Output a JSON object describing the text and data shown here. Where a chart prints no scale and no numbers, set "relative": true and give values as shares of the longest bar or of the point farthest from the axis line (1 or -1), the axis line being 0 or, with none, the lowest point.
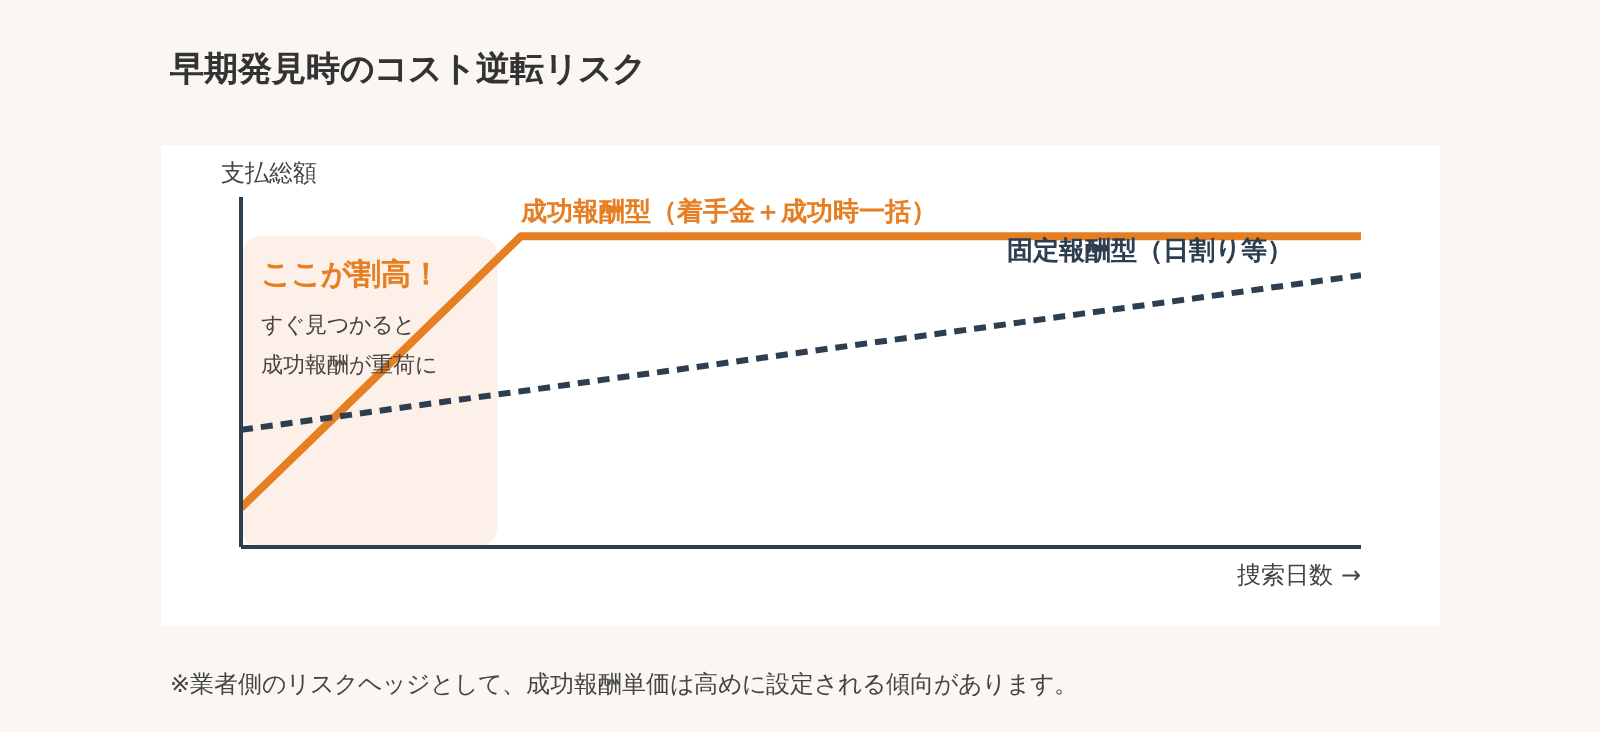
{
  "chart_data": {
    "type": "line",
    "title": "早期発見時のコスト逆転リスク",
    "ylabel": "支払総額",
    "xlabel": "捜索日数 →",
    "relative": true,
    "categories": [
      null,
      null,
      null,
      null,
      null,
      null,
      null,
      null,
      null,
      null,
      null,
      null,
      null
    ],
    "series": [
      {
        "name": "成功報酬型（着手金＋成功時一括）",
        "color": "#e67e22",
        "line_style": "solid",
        "values": [
          0.126,
          0.417,
          0.709,
          1,
          1,
          1,
          1,
          1,
          1,
          1,
          1,
          1,
          1
        ]
      },
      {
        "name": "固定報酬型（日割り等）",
        "color": "#2c3e50",
        "line_style": "dashed",
        "values": [
          0.377,
          0.418,
          0.46,
          0.501,
          0.543,
          0.584,
          0.626,
          0.667,
          0.708,
          0.75,
          0.791,
          0.833,
          0.874
        ]
      }
    ],
    "annotations": [
      "ここが割高！",
      "すぐ見つかると",
      "成功報酬が重荷に",
      "※業者側のリスクヘッジとして、成功報酬単価は高めに設定される傾向があります。"
    ]
  }
}
